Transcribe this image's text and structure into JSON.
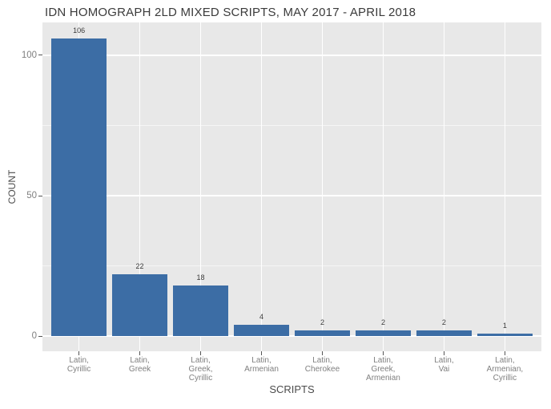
{
  "chart_data": {
    "type": "bar",
    "title": "IDN HOMOGRAPH 2LD MIXED SCRIPTS, MAY 2017 - APRIL 2018",
    "xlabel": "SCRIPTS",
    "ylabel": "COUNT",
    "categories": [
      "Latin,\nCyrillic",
      "Latin,\nGreek",
      "Latin,\nGreek,\nCyrillic",
      "Latin,\nArmenian",
      "Latin,\nCherokee",
      "Latin,\nGreek,\nArmenian",
      "Latin,\nVai",
      "Latin,\nArmenian,\nCyrillic"
    ],
    "values": [
      106,
      22,
      18,
      4,
      2,
      2,
      2,
      1
    ],
    "bar_labels_shown": true,
    "yticks": [
      0,
      50,
      100
    ],
    "yticks_minor": [
      25,
      75
    ],
    "ylim": [
      -5.4,
      111.7
    ],
    "grid": true,
    "legend": false,
    "style": {
      "bar_color": "#3c6da5",
      "panel_bg": "#e8e8e8",
      "grid_major_color": "#ffffff",
      "grid_minor_color": "rgba(255,255,255,0.55)",
      "tick_label_color": "#7f7f7f",
      "axis_title_color": "#4c4c4c",
      "title_color": "#3b3b3b",
      "value_label_color": "#3a3a3a",
      "tick_mark_color": "#555555"
    }
  }
}
